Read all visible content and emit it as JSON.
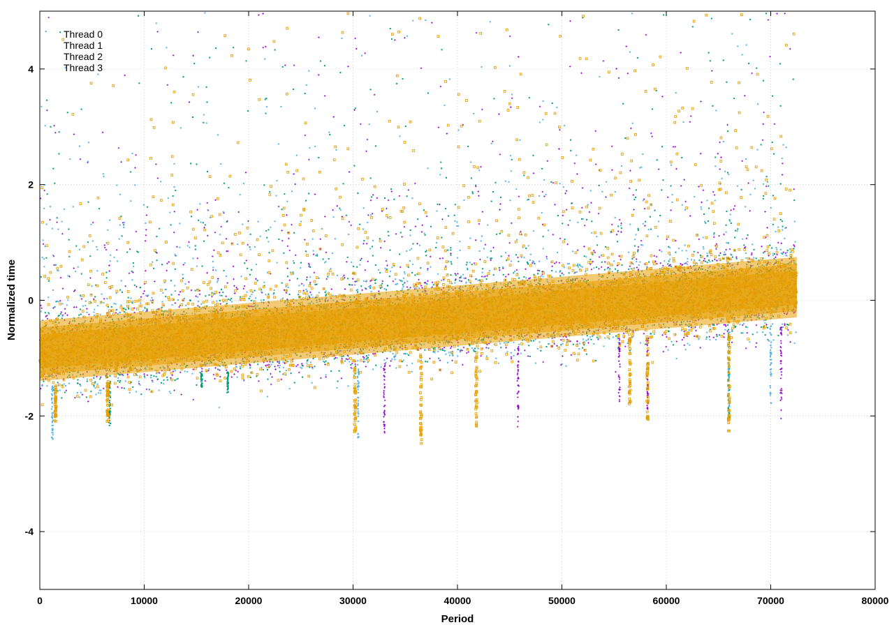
{
  "chart_data": {
    "type": "scatter",
    "title": "",
    "xlabel": "Period",
    "ylabel": "Normalized time",
    "xlim": [
      0,
      80000
    ],
    "ylim": [
      -5,
      5
    ],
    "xticks": [
      0,
      10000,
      20000,
      30000,
      40000,
      50000,
      60000,
      70000,
      80000
    ],
    "yticks": [
      -4,
      -2,
      0,
      2,
      4
    ],
    "grid": true,
    "legend": "top-left",
    "x_max_observed": 72500,
    "series": [
      {
        "name": "Thread 0",
        "color": "#9400d3",
        "marker": "plus",
        "trend": {
          "start_mean": -0.9,
          "end_mean": 0.2,
          "spread": 0.5
        },
        "spikes": [
          [
            33000,
            -2.3
          ],
          [
            45800,
            -2.2
          ],
          [
            55500,
            -1.9
          ],
          [
            58200,
            -2.0
          ],
          [
            71000,
            -2.1
          ]
        ]
      },
      {
        "name": "Thread 1",
        "color": "#009e73",
        "marker": "dot",
        "trend": {
          "start_mean": -0.9,
          "end_mean": 0.2,
          "spread": 0.5
        },
        "spikes": [
          [
            6700,
            -2.2
          ],
          [
            15500,
            -1.5
          ],
          [
            18000,
            -1.6
          ],
          [
            66000,
            -2.1
          ]
        ]
      },
      {
        "name": "Thread 2",
        "color": "#56b4e9",
        "marker": "dot",
        "trend": {
          "start_mean": -0.9,
          "end_mean": 0.2,
          "spread": 0.55
        },
        "spikes": [
          [
            1200,
            -2.5
          ],
          [
            30500,
            -2.4
          ],
          [
            66000,
            -2.0
          ],
          [
            70000,
            -1.8
          ]
        ]
      },
      {
        "name": "Thread 3",
        "color": "#e69f00",
        "marker": "square",
        "trend": {
          "start_mean": -0.9,
          "end_mean": 0.2,
          "spread": 0.5
        },
        "spikes": [
          [
            1500,
            -2.1
          ],
          [
            6500,
            -2.1
          ],
          [
            30200,
            -2.3
          ],
          [
            36500,
            -2.6
          ],
          [
            41800,
            -2.2
          ],
          [
            56500,
            -1.8
          ],
          [
            58200,
            -2.1
          ],
          [
            66000,
            -2.3
          ]
        ]
      }
    ]
  }
}
